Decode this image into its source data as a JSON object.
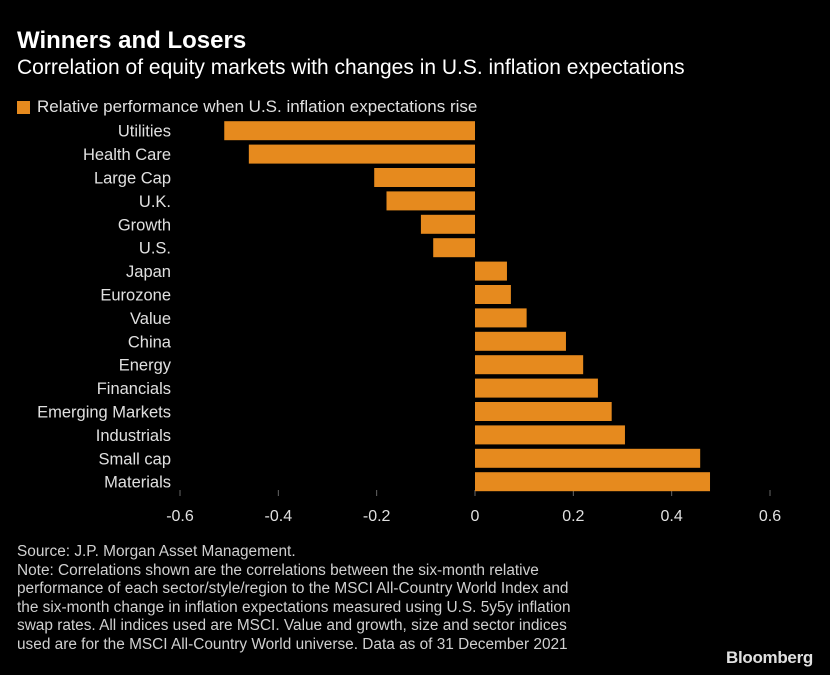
{
  "header": {
    "title": "Winners and Losers",
    "subtitle": "Correlation of equity markets with changes in U.S. inflation expectations"
  },
  "legend_label": "Relative performance when U.S. inflation expectations rise",
  "colors": {
    "bar": "#e68a1e",
    "background": "#000000",
    "text": "#ffffff",
    "grid": "#444444"
  },
  "chart_data": {
    "type": "bar",
    "orientation": "horizontal",
    "title": "Winners and Losers",
    "subtitle": "Correlation of equity markets with changes in U.S. inflation expectations",
    "categories": [
      "Utilities",
      "Health Care",
      "Large Cap",
      "U.K.",
      "Growth",
      "U.S.",
      "Japan",
      "Eurozone",
      "Value",
      "China",
      "Energy",
      "Financials",
      "Emerging Markets",
      "Industrials",
      "Small cap",
      "Materials"
    ],
    "series": [
      {
        "name": "Relative performance when U.S. inflation expectations rise",
        "values": [
          -0.51,
          -0.46,
          -0.205,
          -0.18,
          -0.11,
          -0.085,
          0.065,
          0.073,
          0.105,
          0.185,
          0.22,
          0.25,
          0.278,
          0.305,
          0.458,
          0.478
        ]
      }
    ],
    "xlim": [
      -0.6,
      0.6
    ],
    "xticks": [
      "-0.6",
      "-0.4",
      "-0.2",
      "0",
      "0.2",
      "0.4",
      "0.6"
    ],
    "xtick_values": [
      -0.6,
      -0.4,
      -0.2,
      0,
      0.2,
      0.4,
      0.6
    ],
    "grid": false,
    "legend_position": "top-left"
  },
  "footer": {
    "source": "Source: J.P. Morgan Asset Management.",
    "note_lines": [
      "Note: Correlations shown are the correlations between the six-month relative",
      "performance of each sector/style/region to the MSCI All-Country World Index and",
      "the six-month change in inflation expectations measured using U.S. 5y5y inflation",
      "swap rates. All indices used are MSCI. Value and growth, size and sector indices",
      "used are for the MSCI All-Country World universe. Data as of 31 December 2021"
    ],
    "brand": "Bloomberg"
  }
}
